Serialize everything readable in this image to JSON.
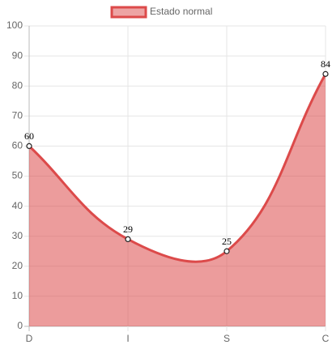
{
  "chart_data": {
    "type": "line",
    "categories": [
      "D",
      "I",
      "S",
      "C"
    ],
    "series": [
      {
        "name": "Estado normal",
        "color": "#dc4a4a",
        "values": [
          60,
          29,
          25,
          84
        ]
      }
    ],
    "ylim": [
      0,
      100
    ],
    "yticks": [
      0,
      10,
      20,
      30,
      40,
      50,
      60,
      70,
      80,
      90,
      100
    ],
    "grid": true,
    "legend": "top",
    "fill": true
  }
}
